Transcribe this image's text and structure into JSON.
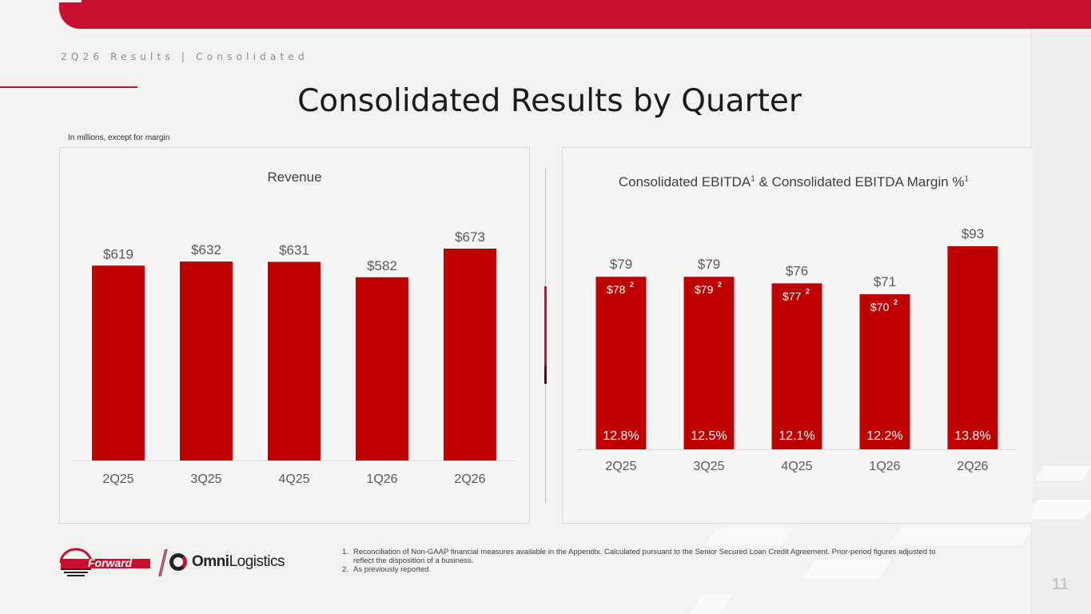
{
  "header": {
    "section_label": "2Q26 Results | Consolidated",
    "title": "Consolidated Results by Quarter",
    "units_note": "In millions, except for margin"
  },
  "colors": {
    "brand_red": "#c8102e",
    "bar_red": "#c00000",
    "text_gray": "#595959"
  },
  "chart_data": [
    {
      "type": "bar",
      "title": "Revenue",
      "categories": [
        "2Q25",
        "3Q25",
        "4Q25",
        "1Q26",
        "2Q26"
      ],
      "values": [
        619,
        632,
        631,
        582,
        673
      ],
      "data_labels": [
        "$619",
        "$632",
        "$631",
        "$582",
        "$673"
      ],
      "ylim": [
        0,
        673
      ],
      "grid": false,
      "legend": "none"
    },
    {
      "type": "bar",
      "title": "Consolidated EBITDA",
      "title_sup": "1",
      "title_suffix": " & Consolidated EBITDA Margin %",
      "title_suffix_sup": "1",
      "categories": [
        "2Q25",
        "3Q25",
        "4Q25",
        "1Q26",
        "2Q26"
      ],
      "series": [
        {
          "values": [
            79,
            79,
            76,
            71,
            93
          ],
          "data_labels": [
            "$79",
            "$79",
            "$76",
            "$71",
            "$93"
          ]
        },
        {
          "values": [
            78,
            79,
            77,
            70,
            null
          ],
          "data_labels": [
            "$78",
            "$79",
            "$77",
            "$70",
            ""
          ],
          "footnote_marker": "2"
        },
        {
          "values": [
            12.8,
            12.5,
            12.1,
            12.2,
            13.8
          ],
          "data_labels": [
            "12.8%",
            "12.5%",
            "12.1%",
            "12.2%",
            "13.8%"
          ]
        }
      ],
      "ylim": [
        0,
        93
      ],
      "grid": false,
      "legend": "none"
    }
  ],
  "footnotes": [
    {
      "num": "1.",
      "text": "Reconciliation of Non-GAAP financial measures available in the Appendix. Calculated pursuant to the Senior Secured Loan Credit Agreement. Prior-period figures adjusted to reflect the disposition of a business."
    },
    {
      "num": "2.",
      "text": "As previously reported."
    }
  ],
  "logos": {
    "forward": "Forward",
    "omni_bold": "Omni",
    "omni_light": "Logistics"
  },
  "page_number": "11"
}
